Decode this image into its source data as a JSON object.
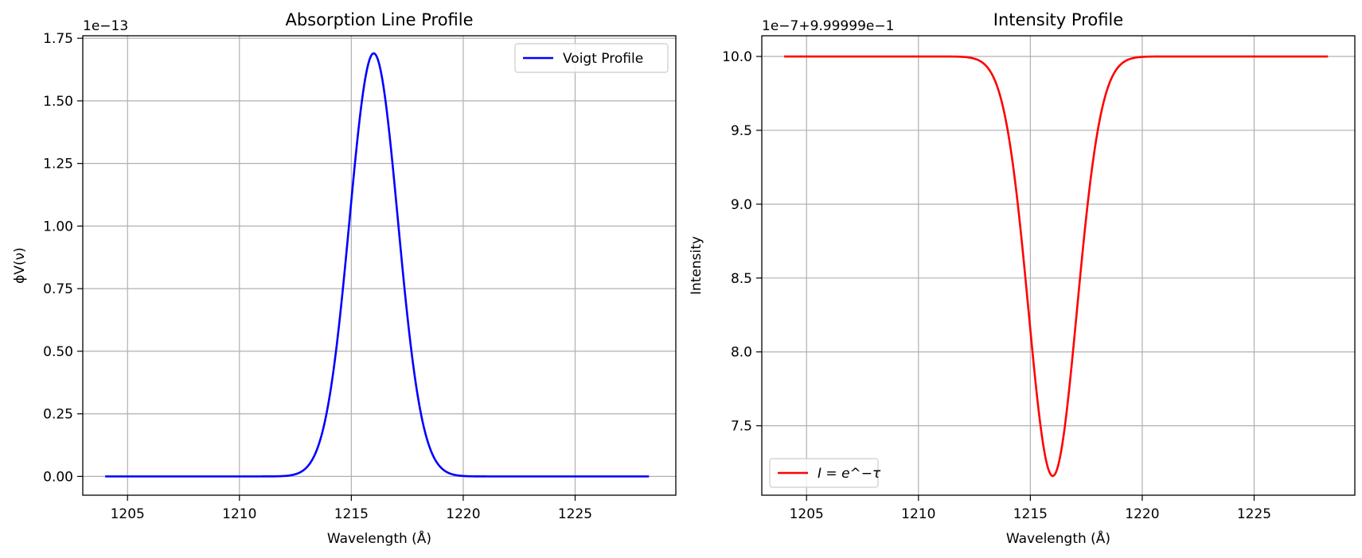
{
  "chart_data": [
    {
      "type": "line",
      "title": "Absorption Line Profile",
      "xlabel": "Wavelength (Å)",
      "ylabel": "ϕV(ν)",
      "offset_text": "1e−13",
      "xlim": [
        1203,
        1229.5
      ],
      "ylim": [
        -0.075,
        1.76
      ],
      "xticks": [
        1205,
        1210,
        1215,
        1220,
        1225
      ],
      "xtick_labels": [
        "1205",
        "1210",
        "1215",
        "1220",
        "1225"
      ],
      "yticks": [
        0.0,
        0.25,
        0.5,
        0.75,
        1.0,
        1.25,
        1.5,
        1.75
      ],
      "ytick_labels": [
        "0.00",
        "0.25",
        "0.50",
        "0.75",
        "1.00",
        "1.25",
        "1.50",
        "1.75"
      ],
      "grid": true,
      "legend_position": "top-right",
      "series": [
        {
          "name": "Voigt Profile",
          "color": "#0000ff",
          "x_range": [
            1204,
            1228.3
          ],
          "profile": "gaussian-dip-inverted",
          "center": 1216,
          "sigma": 1.08,
          "baseline": 0.0,
          "peak": 1.69
        }
      ]
    },
    {
      "type": "line",
      "title": "Intensity Profile",
      "xlabel": "Wavelength (Å)",
      "ylabel": "Intensity",
      "offset_text": "1e−7+9.99999e−1",
      "xlim": [
        1203,
        1229.5
      ],
      "ylim": [
        7.03,
        10.14
      ],
      "xticks": [
        1205,
        1210,
        1215,
        1220,
        1225
      ],
      "xtick_labels": [
        "1205",
        "1210",
        "1215",
        "1220",
        "1225"
      ],
      "yticks": [
        7.5,
        8.0,
        8.5,
        9.0,
        9.5,
        10.0
      ],
      "ytick_labels": [
        "7.5",
        "8.0",
        "8.5",
        "9.0",
        "9.5",
        "10.0"
      ],
      "grid": true,
      "legend_position": "bottom-left",
      "series": [
        {
          "name": "I = e^−τ",
          "color": "#ff0000",
          "x_range": [
            1204,
            1228.3
          ],
          "profile": "gaussian-dip",
          "center": 1216,
          "sigma": 1.08,
          "baseline": 10.0,
          "minimum": 7.16
        }
      ]
    }
  ]
}
